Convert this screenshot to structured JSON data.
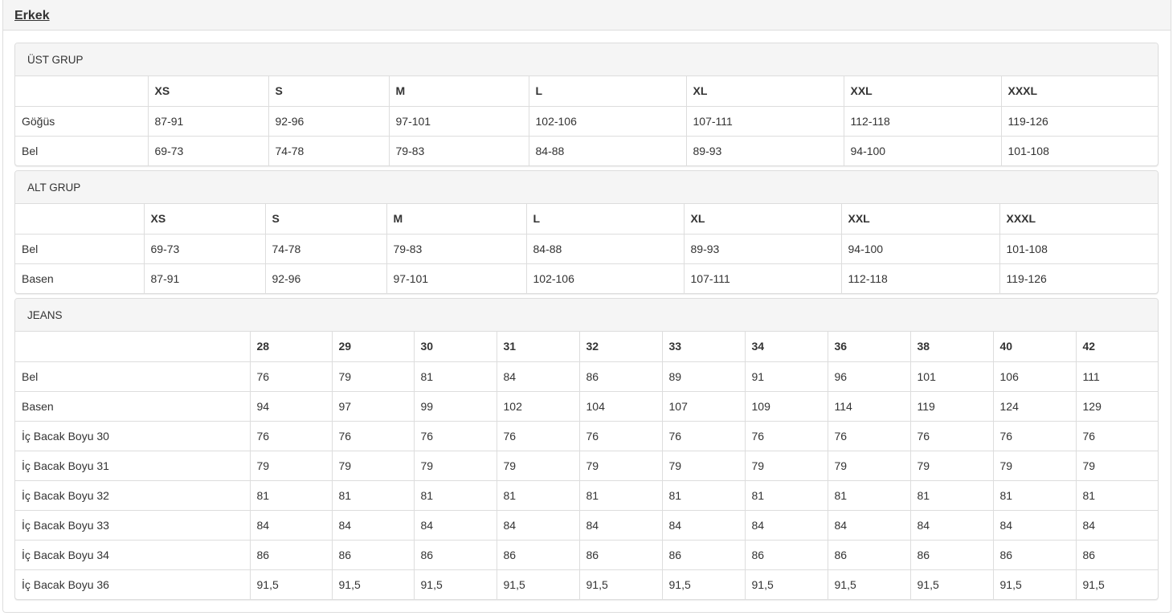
{
  "header": {
    "title": "Erkek"
  },
  "tables": [
    {
      "title": "ÜST GRUP",
      "columns": [
        "",
        "XS",
        "S",
        "M",
        "L",
        "XL",
        "XXL",
        "XXXL"
      ],
      "rows": [
        [
          "Göğüs",
          "87-91",
          "92-96",
          "97-101",
          "102-106",
          "107-111",
          "112-118",
          "119-126"
        ],
        [
          "Bel",
          "69-73",
          "74-78",
          "79-83",
          "84-88",
          "89-93",
          "94-100",
          "101-108"
        ]
      ]
    },
    {
      "title": "ALT GRUP",
      "columns": [
        "",
        "XS",
        "S",
        "M",
        "L",
        "XL",
        "XXL",
        "XXXL"
      ],
      "rows": [
        [
          "Bel",
          "69-73",
          "74-78",
          "79-83",
          "84-88",
          "89-93",
          "94-100",
          "101-108"
        ],
        [
          "Basen",
          "87-91",
          "92-96",
          "97-101",
          "102-106",
          "107-111",
          "112-118",
          "119-126"
        ]
      ]
    },
    {
      "title": "JEANS",
      "columns": [
        "",
        "28",
        "29",
        "30",
        "31",
        "32",
        "33",
        "34",
        "36",
        "38",
        "40",
        "42"
      ],
      "rows": [
        [
          "Bel",
          "76",
          "79",
          "81",
          "84",
          "86",
          "89",
          "91",
          "96",
          "101",
          "106",
          "111"
        ],
        [
          "Basen",
          "94",
          "97",
          "99",
          "102",
          "104",
          "107",
          "109",
          "114",
          "119",
          "124",
          "129"
        ],
        [
          "İç Bacak Boyu 30",
          "76",
          "76",
          "76",
          "76",
          "76",
          "76",
          "76",
          "76",
          "76",
          "76",
          "76"
        ],
        [
          "İç Bacak Boyu 31",
          "79",
          "79",
          "79",
          "79",
          "79",
          "79",
          "79",
          "79",
          "79",
          "79",
          "79"
        ],
        [
          "İç Bacak Boyu 32",
          "81",
          "81",
          "81",
          "81",
          "81",
          "81",
          "81",
          "81",
          "81",
          "81",
          "81"
        ],
        [
          "İç Bacak Boyu 33",
          "84",
          "84",
          "84",
          "84",
          "84",
          "84",
          "84",
          "84",
          "84",
          "84",
          "84"
        ],
        [
          "İç Bacak Boyu 34",
          "86",
          "86",
          "86",
          "86",
          "86",
          "86",
          "86",
          "86",
          "86",
          "86",
          "86"
        ],
        [
          "İç Bacak Boyu 36",
          "91,5",
          "91,5",
          "91,5",
          "91,5",
          "91,5",
          "91,5",
          "91,5",
          "91,5",
          "91,5",
          "91,5",
          "91,5"
        ]
      ]
    }
  ]
}
